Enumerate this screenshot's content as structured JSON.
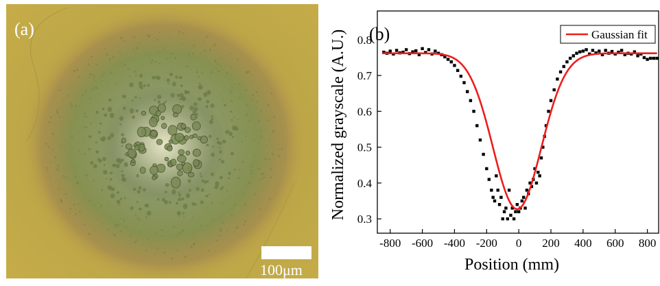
{
  "panel_a": {
    "label": "(a)",
    "scale_label": "100μm"
  },
  "chart_data": {
    "type": "scatter",
    "panel_label": "(b)",
    "xlabel": "Position (mm)",
    "ylabel": "Normalized grayscale (A.U.)",
    "xlim": [
      -880,
      870
    ],
    "ylim": [
      0.26,
      0.88
    ],
    "xticks": [
      -800,
      -600,
      -400,
      -200,
      0,
      200,
      400,
      600,
      800
    ],
    "yticks": [
      0.3,
      0.4,
      0.5,
      0.6,
      0.7,
      0.8
    ],
    "legend": {
      "placement": "top-right",
      "entries": [
        "Gaussian fit"
      ]
    },
    "colors": {
      "data": "#000000",
      "fit": "#ee1c1c"
    },
    "series": [
      {
        "kind": "points",
        "x": [
          -840,
          -820,
          -800,
          -780,
          -760,
          -740,
          -720,
          -700,
          -680,
          -660,
          -640,
          -620,
          -600,
          -580,
          -560,
          -540,
          -520,
          -500,
          -480,
          -460,
          -440,
          -420,
          -400,
          -380,
          -360,
          -340,
          -320,
          -300,
          -280,
          -260,
          -240,
          -220,
          -200,
          -185,
          -170,
          -160,
          -150,
          -140,
          -130,
          -120,
          -110,
          -100,
          -90,
          -80,
          -70,
          -60,
          -50,
          -40,
          -30,
          -20,
          -10,
          0,
          10,
          20,
          30,
          40,
          50,
          60,
          70,
          80,
          90,
          100,
          110,
          120,
          130,
          140,
          150,
          160,
          170,
          185,
          200,
          220,
          240,
          260,
          280,
          300,
          320,
          340,
          360,
          380,
          400,
          420,
          440,
          460,
          480,
          500,
          520,
          540,
          560,
          580,
          600,
          620,
          640,
          660,
          680,
          700,
          720,
          740,
          760,
          780,
          800,
          820,
          840,
          860
        ],
        "y": [
          0.765,
          0.762,
          0.768,
          0.76,
          0.77,
          0.763,
          0.765,
          0.772,
          0.761,
          0.766,
          0.769,
          0.758,
          0.775,
          0.764,
          0.772,
          0.76,
          0.768,
          0.762,
          0.758,
          0.752,
          0.745,
          0.738,
          0.728,
          0.714,
          0.698,
          0.68,
          0.655,
          0.63,
          0.6,
          0.56,
          0.52,
          0.48,
          0.44,
          0.41,
          0.38,
          0.36,
          0.35,
          0.42,
          0.38,
          0.34,
          0.36,
          0.3,
          0.32,
          0.33,
          0.3,
          0.38,
          0.31,
          0.33,
          0.3,
          0.32,
          0.34,
          0.32,
          0.33,
          0.35,
          0.36,
          0.33,
          0.38,
          0.37,
          0.4,
          0.39,
          0.41,
          0.44,
          0.4,
          0.43,
          0.42,
          0.47,
          0.5,
          0.53,
          0.56,
          0.6,
          0.63,
          0.66,
          0.69,
          0.71,
          0.725,
          0.738,
          0.748,
          0.755,
          0.762,
          0.766,
          0.768,
          0.772,
          0.76,
          0.77,
          0.763,
          0.768,
          0.758,
          0.77,
          0.762,
          0.767,
          0.76,
          0.765,
          0.77,
          0.758,
          0.762,
          0.76,
          0.766,
          0.755,
          0.76,
          0.75,
          0.745,
          0.748,
          0.748,
          0.748
        ]
      },
      {
        "kind": "fit",
        "name": "Gaussian fit",
        "model": "gaussian",
        "baseline": 0.762,
        "depth": 0.435,
        "center": -10,
        "sigma": 150
      }
    ]
  }
}
